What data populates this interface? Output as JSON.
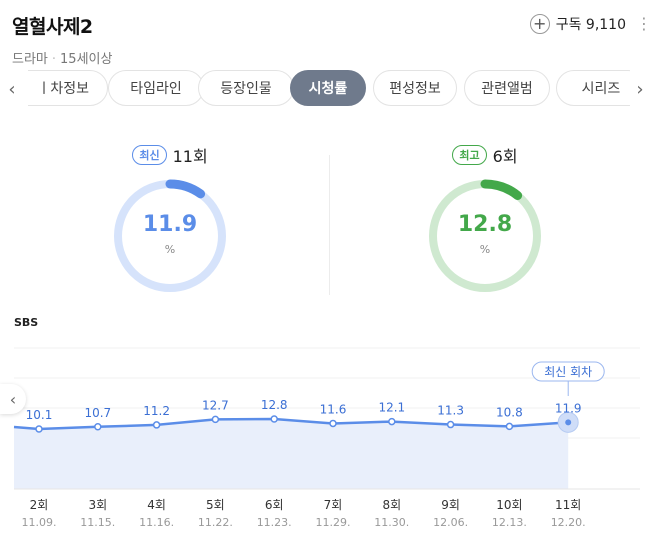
{
  "header": {
    "title": "열혈사제2",
    "genre": "드라마",
    "rating": "15세이상",
    "subscribe_label": "구독 9,110",
    "more_icon": "more-vertical-icon"
  },
  "tabs": [
    {
      "label": "회차정보",
      "display": "ㅣ차정보",
      "active": false
    },
    {
      "label": "타임라인",
      "active": false
    },
    {
      "label": "등장인물",
      "active": false
    },
    {
      "label": "시청률",
      "active": true
    },
    {
      "label": "편성정보",
      "active": false
    },
    {
      "label": "관련앨범",
      "active": false
    },
    {
      "label": "시리즈",
      "active": false
    }
  ],
  "latest": {
    "badge": "최신",
    "episode": "11회",
    "value": "11.9",
    "unit": "%",
    "color": "#5b8de8",
    "track_color": "#d6e3fb"
  },
  "best": {
    "badge": "최고",
    "episode": "6회",
    "value": "12.8",
    "unit": "%",
    "color": "#43a84a",
    "track_color": "#cfe9d0"
  },
  "network": "SBS",
  "chart_data": {
    "type": "area",
    "series": [
      {
        "name": "SBS",
        "values": [
          10.1,
          10.7,
          11.2,
          12.7,
          12.8,
          11.6,
          12.1,
          11.3,
          10.8,
          11.9
        ]
      }
    ],
    "categories": [
      "2회",
      "3회",
      "4회",
      "5회",
      "6회",
      "7회",
      "8회",
      "9회",
      "10회",
      "11회"
    ],
    "dates": [
      "11.09.",
      "11.15.",
      "11.16.",
      "11.22.",
      "11.23.",
      "11.29.",
      "11.30.",
      "12.06.",
      "12.13.",
      "12.20."
    ],
    "latest_label": "최신 회차",
    "line_color": "#5b8de8",
    "fill_color": "#e9effb"
  }
}
